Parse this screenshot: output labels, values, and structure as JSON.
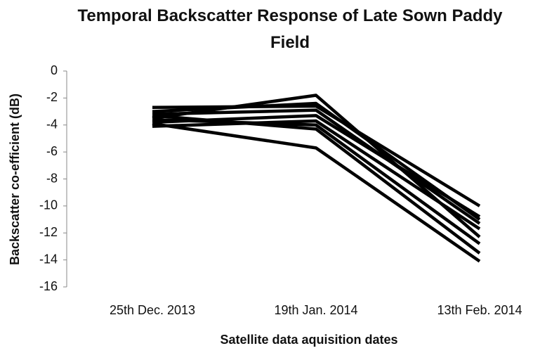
{
  "chart_data": {
    "type": "line",
    "title": "Temporal Backscatter Response of Late Sown Paddy Field",
    "x_label": "Satellite data aquisition dates",
    "y_label": "Backscatter co-efficient (dB)",
    "categories": [
      "25th Dec. 2013",
      "19th Jan. 2014",
      "13th Feb. 2014"
    ],
    "series": [
      {
        "color": "#000000",
        "values": [
          -3.5,
          -1.8,
          -12.3
        ]
      },
      {
        "color": "#000000",
        "values": [
          -3.0,
          -2.4,
          -11.0
        ]
      },
      {
        "color": "#000000",
        "values": [
          -2.7,
          -2.6,
          -10.0
        ]
      },
      {
        "color": "#000000",
        "values": [
          -3.2,
          -2.9,
          -11.3
        ]
      },
      {
        "color": "#000000",
        "values": [
          -3.8,
          -3.3,
          -10.8
        ]
      },
      {
        "color": "#000000",
        "values": [
          -4.1,
          -3.7,
          -11.7
        ]
      },
      {
        "color": "#000000",
        "values": [
          -3.6,
          -4.0,
          -12.8
        ]
      },
      {
        "color": "#000000",
        "values": [
          -3.3,
          -4.3,
          -13.5
        ]
      },
      {
        "color": "#000000",
        "values": [
          -3.9,
          -5.7,
          -14.1
        ]
      }
    ],
    "ylim": [
      -16,
      0
    ],
    "yticks": [
      -16,
      -14,
      -12,
      -10,
      -8,
      -6,
      -4,
      -2,
      0
    ],
    "grid": false
  }
}
